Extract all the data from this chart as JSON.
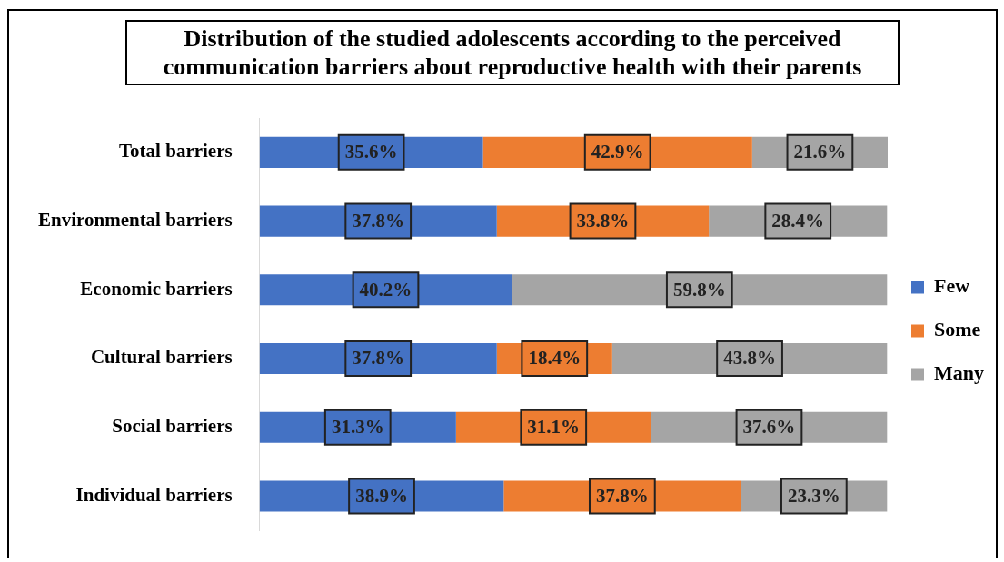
{
  "chart_data": {
    "type": "bar",
    "orientation": "horizontal",
    "stacked": true,
    "title": "Distribution of the studied adolescents according to the perceived communication barriers about reproductive health with their parents",
    "categories": [
      "Total barriers",
      "Environmental barriers",
      "Economic barriers",
      "Cultural barriers",
      "Social barriers",
      "Individual barriers"
    ],
    "series": [
      {
        "name": "Few",
        "color": "#4472c4",
        "values": [
          35.6,
          37.8,
          40.2,
          37.8,
          31.3,
          38.9
        ],
        "value_labels": [
          "35.6%",
          "37.8%",
          "40.2%",
          "37.8%",
          "31.3%",
          "38.9%"
        ]
      },
      {
        "name": "Some",
        "color": "#ed7d31",
        "values": [
          42.9,
          33.8,
          null,
          18.4,
          31.1,
          37.8
        ],
        "value_labels": [
          "42.9%",
          "33.8%",
          null,
          "18.4%",
          "31.1%",
          "37.8%"
        ]
      },
      {
        "name": "Many",
        "color": "#a5a5a5",
        "values": [
          21.6,
          28.4,
          59.8,
          43.8,
          37.6,
          23.3
        ],
        "value_labels": [
          "21.6%",
          "28.4%",
          "59.8%",
          "43.8%",
          "37.6%",
          "23.3%"
        ]
      }
    ],
    "tick_labels": "y",
    "legend": "right"
  }
}
